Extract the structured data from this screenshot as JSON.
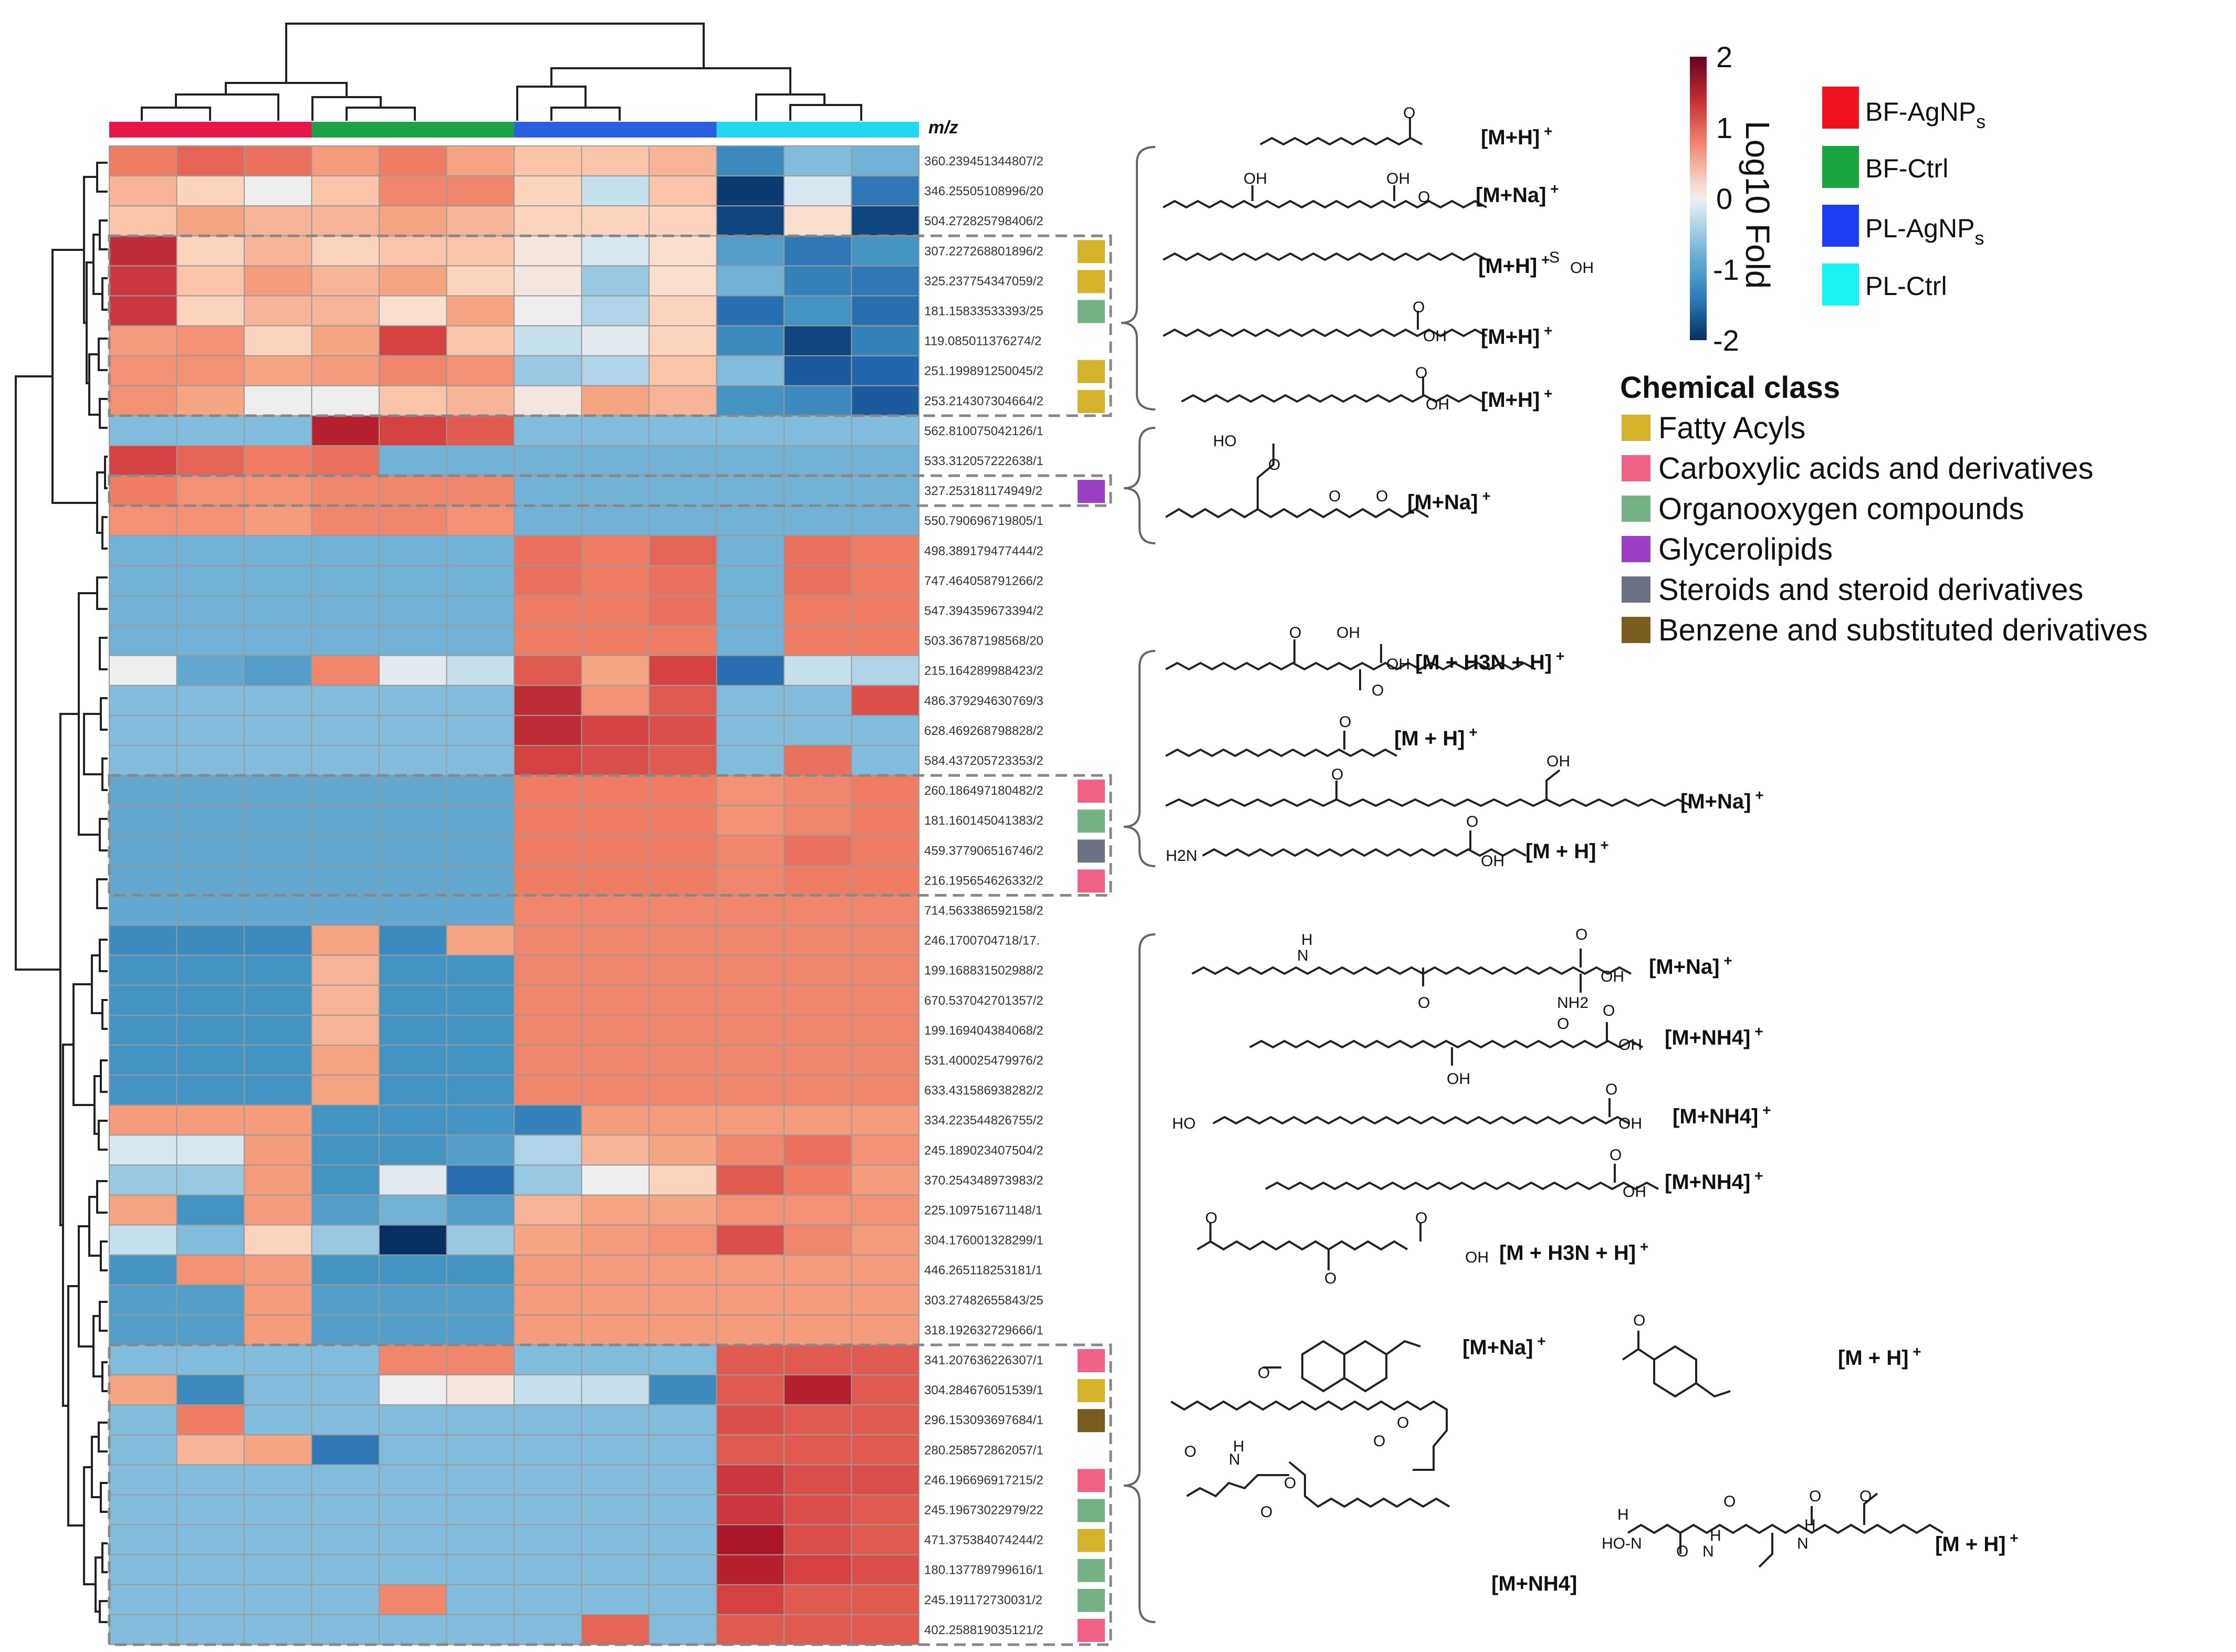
{
  "chart_data": {
    "type": "heatmap",
    "title": "",
    "row_header": "m/z",
    "colorbar": {
      "title": "Log10 Fold",
      "ticks": [
        2,
        1,
        0,
        -1,
        -2
      ],
      "range": [
        -2,
        2
      ]
    },
    "groups": [
      {
        "name": "BF-AgNPs",
        "color": "#e8174a",
        "columns": 3
      },
      {
        "name": "BF-Ctrl",
        "color": "#1ba24a",
        "columns": 3
      },
      {
        "name": "PL-AgNPs",
        "color": "#2a5fe0",
        "columns": 3
      },
      {
        "name": "PL-Ctrl",
        "color": "#21d8ef",
        "columns": 3
      }
    ],
    "group_legend_labels": {
      "bf_agnp": [
        "BF-AgNP",
        "s"
      ],
      "bf_ctrl": "BF-Ctrl",
      "pl_agnp": [
        "PL-AgNP",
        "s"
      ],
      "pl_ctrl": "PL-Ctrl"
    },
    "chemical_classes": [
      {
        "key": "FA",
        "name": "Fatty Acyls",
        "color": "#d4b32a"
      },
      {
        "key": "CA",
        "name": "Carboxylic acids and derivatives",
        "color": "#f06285"
      },
      {
        "key": "OO",
        "name": "Organooxygen compounds",
        "color": "#74b183"
      },
      {
        "key": "GL",
        "name": "Glycerolipids",
        "color": "#9a3fc4"
      },
      {
        "key": "ST",
        "name": "Steroids and steroid derivatives",
        "color": "#6b7286"
      },
      {
        "key": "BZ",
        "name": "Benzene and substituted derivatives",
        "color": "#7b5c1f"
      }
    ],
    "rows": [
      {
        "mz": "360.239451344807/2",
        "cls": "",
        "values": [
          1.0,
          1.2,
          1.1,
          0.7,
          1.0,
          0.6,
          0.4,
          0.4,
          0.5,
          -1.1,
          -0.6,
          -0.7
        ]
      },
      {
        "mz": "346.25505108996/20",
        "cls": "",
        "values": [
          0.5,
          0.3,
          0.0,
          0.4,
          0.9,
          0.9,
          0.3,
          -0.3,
          0.4,
          -1.9,
          -0.2,
          -1.3
        ]
      },
      {
        "mz": "504.272825798406/2",
        "cls": "",
        "values": [
          0.4,
          0.6,
          0.5,
          0.5,
          0.6,
          0.5,
          0.3,
          0.3,
          0.3,
          -1.8,
          0.2,
          -1.8
        ]
      },
      {
        "mz": "307.227268801896/2",
        "cls": "FA",
        "values": [
          1.7,
          0.3,
          0.5,
          0.3,
          0.4,
          0.4,
          0.1,
          -0.2,
          0.2,
          -0.9,
          -1.3,
          -1.0
        ]
      },
      {
        "mz": "325.237754347059/2",
        "cls": "FA",
        "values": [
          1.6,
          0.4,
          0.7,
          0.5,
          0.6,
          0.3,
          0.1,
          -0.5,
          0.2,
          -0.7,
          -1.2,
          -1.3
        ]
      },
      {
        "mz": "181.15833533393/25",
        "cls": "OO",
        "values": [
          1.6,
          0.3,
          0.5,
          0.5,
          0.2,
          0.6,
          0.0,
          -0.4,
          0.3,
          -1.4,
          -1.0,
          -1.4
        ]
      },
      {
        "mz": "119.085011376274/2",
        "cls": "",
        "values": [
          0.7,
          0.8,
          0.3,
          0.6,
          1.5,
          0.4,
          -0.3,
          -0.1,
          0.3,
          -1.1,
          -1.8,
          -1.2
        ]
      },
      {
        "mz": "251.199891250045/2",
        "cls": "FA",
        "values": [
          0.8,
          0.8,
          0.6,
          0.7,
          0.9,
          0.8,
          -0.5,
          -0.4,
          0.4,
          -0.6,
          -1.6,
          -1.5
        ]
      },
      {
        "mz": "253.214307304664/2",
        "cls": "FA",
        "values": [
          0.8,
          0.6,
          0.0,
          0.0,
          0.4,
          0.5,
          0.1,
          0.6,
          0.5,
          -1.0,
          -1.1,
          -1.6
        ]
      },
      {
        "mz": "562.810075042126/1",
        "cls": "",
        "values": [
          -0.6,
          -0.6,
          -0.6,
          1.8,
          1.5,
          1.3,
          -0.6,
          -0.6,
          -0.6,
          -0.6,
          -0.6,
          -0.6
        ]
      },
      {
        "mz": "533.312057222638/1",
        "cls": "",
        "values": [
          1.5,
          1.2,
          1.0,
          1.1,
          -0.7,
          -0.7,
          -0.7,
          -0.7,
          -0.7,
          -0.7,
          -0.7,
          -0.7
        ]
      },
      {
        "mz": "327.253181174949/2",
        "cls": "GL",
        "values": [
          1.0,
          0.8,
          0.8,
          0.9,
          0.9,
          0.9,
          -0.7,
          -0.7,
          -0.7,
          -0.7,
          -0.7,
          -0.7
        ]
      },
      {
        "mz": "550.790696719805/1",
        "cls": "",
        "values": [
          0.8,
          0.8,
          0.7,
          0.9,
          0.9,
          0.8,
          -0.7,
          -0.7,
          -0.7,
          -0.7,
          -0.7,
          -0.7
        ]
      },
      {
        "mz": "498.389179477444/2",
        "cls": "",
        "values": [
          -0.7,
          -0.7,
          -0.7,
          -0.7,
          -0.7,
          -0.7,
          1.1,
          1.0,
          1.2,
          -0.7,
          1.1,
          1.0
        ]
      },
      {
        "mz": "747.464058791266/2",
        "cls": "",
        "values": [
          -0.7,
          -0.7,
          -0.7,
          -0.7,
          -0.7,
          -0.7,
          1.1,
          1.0,
          1.1,
          -0.7,
          1.1,
          1.0
        ]
      },
      {
        "mz": "547.394359673394/2",
        "cls": "",
        "values": [
          -0.7,
          -0.7,
          -0.7,
          -0.7,
          -0.7,
          -0.7,
          1.0,
          1.0,
          1.1,
          -0.7,
          1.0,
          1.0
        ]
      },
      {
        "mz": "503.36787198568/20",
        "cls": "",
        "values": [
          -0.7,
          -0.7,
          -0.7,
          -0.7,
          -0.7,
          -0.7,
          1.0,
          1.0,
          1.0,
          -0.7,
          1.0,
          1.0
        ]
      },
      {
        "mz": "215.164289988423/2",
        "cls": "",
        "values": [
          0.0,
          -0.8,
          -0.9,
          0.9,
          -0.1,
          -0.3,
          1.3,
          0.6,
          1.5,
          -1.4,
          -0.3,
          -0.4
        ]
      },
      {
        "mz": "486.379294630769/3",
        "cls": "",
        "values": [
          -0.6,
          -0.6,
          -0.6,
          -0.6,
          -0.6,
          -0.6,
          1.7,
          0.8,
          1.3,
          -0.6,
          -0.6,
          1.4
        ]
      },
      {
        "mz": "628.469268798828/2",
        "cls": "",
        "values": [
          -0.6,
          -0.6,
          -0.6,
          -0.6,
          -0.6,
          -0.6,
          1.7,
          1.5,
          1.4,
          -0.6,
          -0.6,
          -0.6
        ]
      },
      {
        "mz": "584.437205723353/2",
        "cls": "",
        "values": [
          -0.6,
          -0.6,
          -0.6,
          -0.6,
          -0.6,
          -0.6,
          1.5,
          1.4,
          1.3,
          -0.6,
          1.1,
          -0.6
        ]
      },
      {
        "mz": "260.186497180482/2",
        "cls": "CA",
        "values": [
          -0.8,
          -0.8,
          -0.8,
          -0.8,
          -0.8,
          -0.8,
          1.0,
          1.0,
          1.0,
          0.8,
          0.9,
          1.0
        ]
      },
      {
        "mz": "181.160145041383/2",
        "cls": "OO",
        "values": [
          -0.8,
          -0.8,
          -0.8,
          -0.8,
          -0.8,
          -0.8,
          1.0,
          1.0,
          1.0,
          0.8,
          0.9,
          1.0
        ]
      },
      {
        "mz": "459.377906516746/2",
        "cls": "ST",
        "values": [
          -0.8,
          -0.8,
          -0.8,
          -0.8,
          -0.8,
          -0.8,
          1.0,
          1.0,
          1.0,
          0.9,
          1.1,
          1.0
        ]
      },
      {
        "mz": "216.195654626332/2",
        "cls": "CA",
        "values": [
          -0.8,
          -0.8,
          -0.8,
          -0.8,
          -0.8,
          -0.8,
          1.0,
          1.0,
          1.0,
          0.9,
          1.0,
          1.0
        ]
      },
      {
        "mz": "714.563386592158/2",
        "cls": "",
        "values": [
          -0.8,
          -0.8,
          -0.8,
          -0.8,
          -0.8,
          -0.8,
          0.9,
          0.9,
          0.9,
          0.9,
          0.9,
          0.9
        ]
      },
      {
        "mz": "246.1700704718/17.",
        "cls": "",
        "values": [
          -1.1,
          -1.1,
          -1.1,
          0.6,
          -1.1,
          0.6,
          0.9,
          0.9,
          0.9,
          0.9,
          0.9,
          0.9
        ]
      },
      {
        "mz": "199.168831502988/2",
        "cls": "",
        "values": [
          -1.0,
          -1.0,
          -1.0,
          0.5,
          -1.0,
          -1.0,
          0.9,
          0.9,
          0.9,
          0.9,
          0.9,
          0.9
        ]
      },
      {
        "mz": "670.537042701357/2",
        "cls": "",
        "values": [
          -1.0,
          -1.0,
          -1.0,
          0.5,
          -1.0,
          -1.0,
          0.9,
          0.9,
          0.9,
          0.9,
          0.9,
          0.9
        ]
      },
      {
        "mz": "199.169404384068/2",
        "cls": "",
        "values": [
          -1.0,
          -1.0,
          -1.0,
          0.5,
          -1.0,
          -1.0,
          0.9,
          0.9,
          0.9,
          0.9,
          0.9,
          0.9
        ]
      },
      {
        "mz": "531.400025479976/2",
        "cls": "",
        "values": [
          -1.0,
          -1.0,
          -1.0,
          0.6,
          -1.0,
          -1.0,
          0.9,
          0.9,
          0.9,
          0.9,
          0.9,
          0.9
        ]
      },
      {
        "mz": "633.431586938282/2",
        "cls": "",
        "values": [
          -1.0,
          -1.0,
          -1.0,
          0.6,
          -1.0,
          -1.0,
          0.9,
          0.9,
          0.9,
          0.9,
          0.9,
          0.9
        ]
      },
      {
        "mz": "334.223544826755/2",
        "cls": "",
        "values": [
          0.7,
          0.7,
          0.7,
          -1.0,
          -1.0,
          -1.0,
          -1.2,
          0.7,
          0.7,
          0.7,
          0.7,
          0.7
        ]
      },
      {
        "mz": "245.189023407504/2",
        "cls": "",
        "values": [
          -0.2,
          -0.2,
          0.7,
          -1.0,
          -1.0,
          -0.9,
          -0.4,
          0.5,
          0.6,
          0.9,
          1.1,
          0.8
        ]
      },
      {
        "mz": "370.254348973983/2",
        "cls": "",
        "values": [
          -0.5,
          -0.5,
          0.7,
          -1.0,
          -0.1,
          -1.4,
          -0.5,
          0.0,
          0.3,
          1.3,
          1.0,
          0.7
        ]
      },
      {
        "mz": "225.109751671148/1",
        "cls": "",
        "values": [
          0.6,
          -1.0,
          0.7,
          -0.9,
          -0.7,
          -0.9,
          0.5,
          0.6,
          0.6,
          0.8,
          0.8,
          0.8
        ]
      },
      {
        "mz": "304.176001328299/1",
        "cls": "",
        "values": [
          -0.3,
          -0.6,
          0.3,
          -0.5,
          -2.0,
          -0.5,
          0.6,
          0.7,
          0.8,
          1.4,
          0.9,
          0.7
        ]
      },
      {
        "mz": "446.265118253181/1",
        "cls": "",
        "values": [
          -1.0,
          0.8,
          0.7,
          -1.0,
          -1.0,
          -1.0,
          0.7,
          0.7,
          0.7,
          0.7,
          0.7,
          0.7
        ]
      },
      {
        "mz": "303.27482655843/25",
        "cls": "",
        "values": [
          -0.9,
          -0.9,
          0.7,
          -0.9,
          -0.9,
          -0.9,
          0.7,
          0.7,
          0.7,
          0.7,
          0.7,
          0.7
        ]
      },
      {
        "mz": "318.192632729666/1",
        "cls": "",
        "values": [
          -0.9,
          -0.9,
          0.7,
          -0.9,
          -0.9,
          -0.9,
          0.7,
          0.7,
          0.7,
          0.7,
          0.7,
          0.7
        ]
      },
      {
        "mz": "341.207636226307/1",
        "cls": "CA",
        "values": [
          -0.6,
          -0.6,
          -0.6,
          -0.6,
          0.9,
          0.9,
          -0.6,
          -0.6,
          -0.6,
          1.3,
          1.3,
          1.3
        ]
      },
      {
        "mz": "304.284676051539/1",
        "cls": "FA",
        "values": [
          0.6,
          -1.1,
          -0.6,
          -0.6,
          0.0,
          0.1,
          -0.3,
          -0.3,
          -1.1,
          1.3,
          1.8,
          1.3
        ]
      },
      {
        "mz": "296.153093697684/1",
        "cls": "BZ",
        "values": [
          -0.6,
          1.0,
          -0.6,
          -0.6,
          -0.6,
          -0.6,
          -0.6,
          -0.6,
          -0.6,
          1.4,
          1.3,
          1.3
        ]
      },
      {
        "mz": "280.258572862057/1",
        "cls": "",
        "values": [
          -0.6,
          0.5,
          0.6,
          -1.3,
          -0.6,
          -0.6,
          -0.6,
          -0.6,
          -0.6,
          1.3,
          1.3,
          1.3
        ]
      },
      {
        "mz": "246.196696917215/2",
        "cls": "CA",
        "values": [
          -0.6,
          -0.6,
          -0.6,
          -0.6,
          -0.6,
          -0.6,
          -0.6,
          -0.6,
          -0.6,
          1.6,
          1.4,
          1.4
        ]
      },
      {
        "mz": "245.19673022979/22",
        "cls": "OO",
        "values": [
          -0.6,
          -0.6,
          -0.6,
          -0.6,
          -0.6,
          -0.6,
          -0.6,
          -0.6,
          -0.6,
          1.6,
          1.4,
          1.3
        ]
      },
      {
        "mz": "471.375384074244/2",
        "cls": "FA",
        "values": [
          -0.6,
          -0.6,
          -0.6,
          -0.6,
          -0.6,
          -0.6,
          -0.6,
          -0.6,
          -0.6,
          1.9,
          1.4,
          1.3
        ]
      },
      {
        "mz": "180.137789799616/1",
        "cls": "OO",
        "values": [
          -0.6,
          -0.6,
          -0.6,
          -0.6,
          -0.6,
          -0.6,
          -0.6,
          -0.6,
          -0.6,
          1.8,
          1.5,
          1.4
        ]
      },
      {
        "mz": "245.191172730031/2",
        "cls": "OO",
        "values": [
          -0.6,
          -0.6,
          -0.6,
          -0.6,
          0.9,
          -0.6,
          -0.6,
          -0.6,
          -0.6,
          1.5,
          1.3,
          1.3
        ]
      },
      {
        "mz": "402.258819035121/2",
        "cls": "CA",
        "values": [
          -0.6,
          -0.6,
          -0.6,
          -0.6,
          -0.6,
          -0.6,
          -0.6,
          1.2,
          -0.6,
          1.3,
          1.3,
          1.3
        ]
      }
    ],
    "annotations": [
      {
        "adduct": "[M+H]",
        "charge": "+"
      },
      {
        "adduct": "[M+Na]",
        "charge": "+"
      },
      {
        "adduct": "[M+H]",
        "charge": "+"
      },
      {
        "adduct": "[M+H]",
        "charge": "+"
      },
      {
        "adduct": "[M+H]",
        "charge": "+"
      },
      {
        "adduct": "[M+Na]",
        "charge": "+"
      },
      {
        "adduct": "[M + H3N + H]",
        "charge": "+"
      },
      {
        "adduct": "[M + H]",
        "charge": "+"
      },
      {
        "adduct": "[M+Na]",
        "charge": "+"
      },
      {
        "adduct": "[M + H]",
        "charge": "+"
      },
      {
        "adduct": "[M+Na]",
        "charge": "+"
      },
      {
        "adduct": "[M+NH4]",
        "charge": "+"
      },
      {
        "adduct": "[M+NH4]",
        "charge": "+"
      },
      {
        "adduct": "[M+NH4]",
        "charge": "+"
      },
      {
        "adduct": "[M + H3N + H]",
        "charge": "+"
      },
      {
        "adduct": "[M+Na]",
        "charge": "+"
      },
      {
        "adduct": "[M + H]",
        "charge": "+"
      },
      {
        "adduct": "[M+NH4]",
        "charge": ""
      },
      {
        "adduct": "[M + H]",
        "charge": "+"
      }
    ],
    "atom_labels": [
      "O",
      "OH",
      "S",
      "NH2",
      "H",
      "N",
      "HO",
      "H2N",
      "HO-N"
    ]
  }
}
